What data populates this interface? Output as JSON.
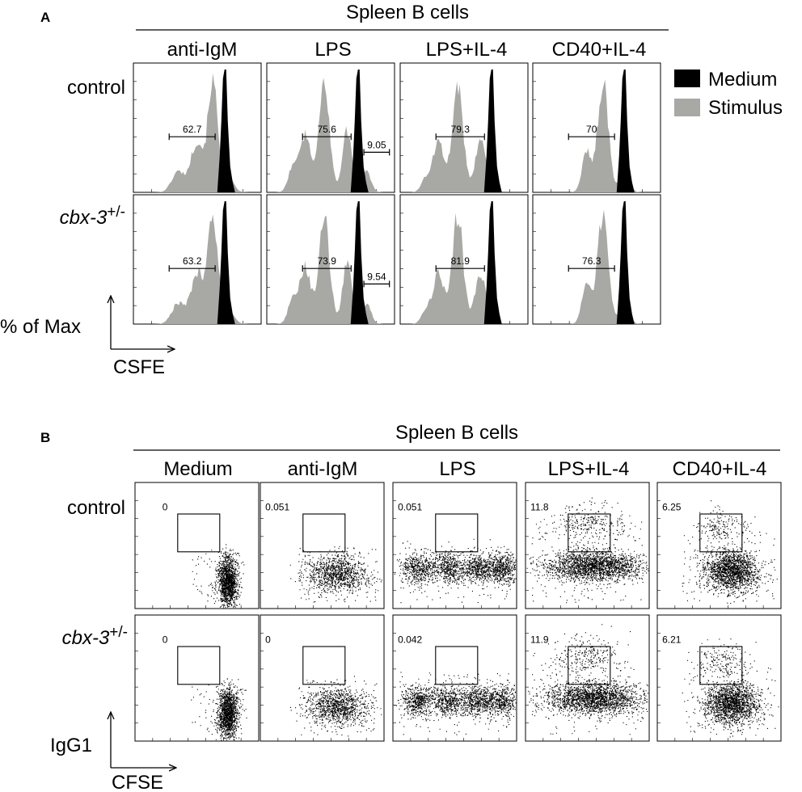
{
  "panel_a": {
    "letter": "A",
    "header": "Spleen B cells",
    "columns": [
      "anti-IgM",
      "LPS",
      "LPS+IL-4",
      "CD40+IL-4"
    ],
    "rows": [
      "control",
      "cbx-3"
    ],
    "row_superscript": "+/-",
    "y_axis_label": "% of Max",
    "x_axis_label": "CSFE",
    "legend": [
      {
        "label": "Medium",
        "color": "#000000"
      },
      {
        "label": "Stimulus",
        "color": "#a8a8a5"
      }
    ]
  },
  "panel_b": {
    "letter": "B",
    "header": "Spleen B cells",
    "columns": [
      "Medium",
      "anti-IgM",
      "LPS",
      "LPS+IL-4",
      "CD40+IL-4"
    ],
    "rows": [
      "control",
      "cbx-3"
    ],
    "row_superscript": "+/-",
    "y_axis_label": "IgG1",
    "x_axis_label": "CFSE"
  },
  "chart_data": [
    {
      "type": "histogram",
      "panel": "A",
      "title": "Spleen B cells",
      "series_colors": {
        "Medium": "#000000",
        "Stimulus": "#a8a8a5"
      },
      "gates": [
        {
          "row": "control",
          "column": "anti-IgM",
          "labels": [
            "62.7"
          ]
        },
        {
          "row": "control",
          "column": "LPS",
          "labels": [
            "75.6",
            "9.05"
          ]
        },
        {
          "row": "control",
          "column": "LPS+IL-4",
          "labels": [
            "79.3"
          ]
        },
        {
          "row": "control",
          "column": "CD40+IL-4",
          "labels": [
            "70"
          ]
        },
        {
          "row": "cbx-3+/-",
          "column": "anti-IgM",
          "labels": [
            "63.2"
          ]
        },
        {
          "row": "cbx-3+/-",
          "column": "LPS",
          "labels": [
            "73.9",
            "9.54"
          ]
        },
        {
          "row": "cbx-3+/-",
          "column": "LPS+IL-4",
          "labels": [
            "81.9"
          ]
        },
        {
          "row": "cbx-3+/-",
          "column": "CD40+IL-4",
          "labels": [
            "76.3"
          ]
        }
      ]
    },
    {
      "type": "scatter",
      "panel": "B",
      "title": "Spleen B cells",
      "gate_percentages": [
        {
          "row": "control",
          "column": "Medium",
          "value": "0"
        },
        {
          "row": "control",
          "column": "anti-IgM",
          "value": "0.051"
        },
        {
          "row": "control",
          "column": "LPS",
          "value": "0.051"
        },
        {
          "row": "control",
          "column": "LPS+IL-4",
          "value": "11.8"
        },
        {
          "row": "control",
          "column": "CD40+IL-4",
          "value": "6.25"
        },
        {
          "row": "cbx-3+/-",
          "column": "Medium",
          "value": "0"
        },
        {
          "row": "cbx-3+/-",
          "column": "anti-IgM",
          "value": "0"
        },
        {
          "row": "cbx-3+/-",
          "column": "LPS",
          "value": "0.042"
        },
        {
          "row": "cbx-3+/-",
          "column": "LPS+IL-4",
          "value": "11.9"
        },
        {
          "row": "cbx-3+/-",
          "column": "CD40+IL-4",
          "value": "6.21"
        }
      ]
    }
  ]
}
